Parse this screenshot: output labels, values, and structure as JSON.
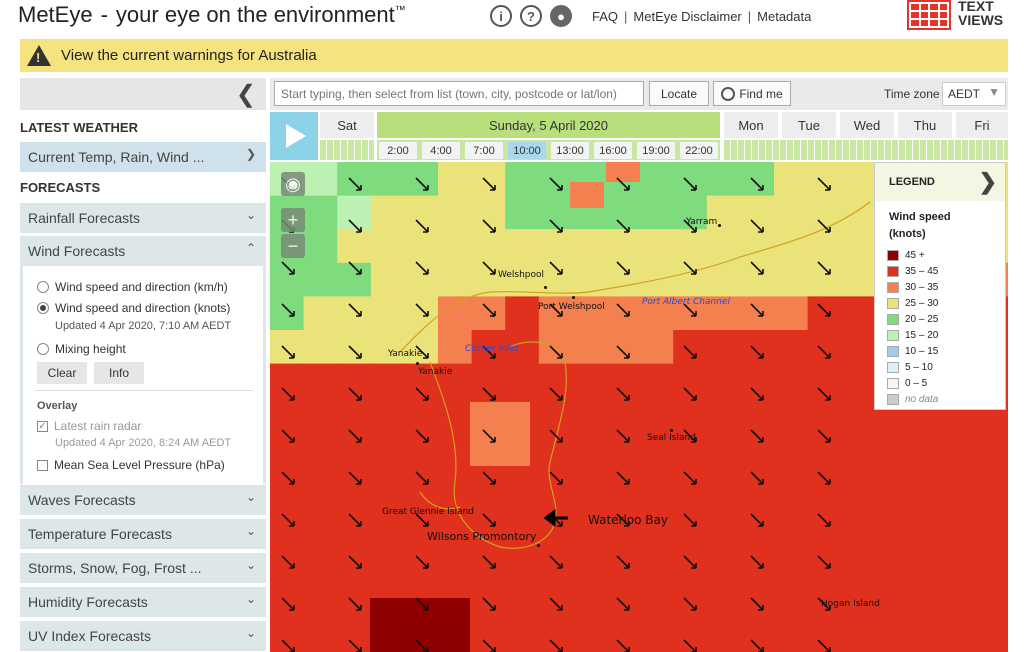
{
  "header": {
    "brand": "MetEye",
    "separator": "-",
    "tagline": "your eye on the environment",
    "trademark": "™",
    "icons": [
      "info-icon",
      "help-icon",
      "feedback-icon"
    ],
    "links": [
      "FAQ",
      "MetEye Disclaimer",
      "Metadata"
    ],
    "link_separator": "|",
    "text_views_line1": "TEXT",
    "text_views_line2": "VIEWS"
  },
  "warning": {
    "text": "View the current warnings for Australia"
  },
  "search": {
    "placeholder": "Start typing, then select from list (town, city, postcode or lat/lon)",
    "locate": "Locate",
    "find_me": "Find me",
    "timezone_label": "Time zone",
    "timezone_value": "AEDT"
  },
  "sidebar": {
    "latest_heading": "LATEST WEATHER",
    "current": "Current Temp, Rain, Wind ...",
    "forecasts_heading": "FORECASTS",
    "rainfall": "Rainfall Forecasts",
    "wind": "Wind Forecasts",
    "wind_options": {
      "kmh": "Wind speed and direction (km/h)",
      "knots": "Wind speed and direction (knots)",
      "knots_updated": "Updated 4 Apr 2020, 7:10 AM AEDT",
      "mixing": "Mixing height",
      "selected": "knots"
    },
    "clear": "Clear",
    "info": "Info",
    "overlay_heading": "Overlay",
    "radar": "Latest rain radar",
    "radar_updated": "Updated 4 Apr 2020, 8:24 AM AEDT",
    "mslp": "Mean Sea Level Pressure (hPa)",
    "waves": "Waves Forecasts",
    "temperature": "Temperature Forecasts",
    "storms": "Storms, Snow, Fog, Frost ...",
    "humidity": "Humidity Forecasts",
    "uv": "UV Index Forecasts"
  },
  "timeline": {
    "days": [
      "Sat",
      "Sunday, 5 April 2020",
      "Mon",
      "Tue",
      "Wed",
      "Thu",
      "Fri"
    ],
    "active_day": "Sunday, 5 April 2020",
    "hours": [
      "2:00",
      "4:00",
      "7:00",
      "10:00",
      "13:00",
      "16:00",
      "19:00",
      "22:00"
    ],
    "selected_hour": "10:00"
  },
  "map": {
    "places": [
      "Yarram",
      "Welshpool",
      "Port Welshpool",
      "Port Albert Channel",
      "Yanakie",
      "Yanakie",
      "Corner Inlet",
      "Seal Island",
      "Great Glennie Island",
      "Wilsons Promontory",
      "Waterloo Bay",
      "Hogan Island"
    ],
    "colors": {
      "c45": "#8e0000",
      "c35": "#e0301e",
      "c30": "#f5804f",
      "c25": "#e9e37a",
      "c20": "#7edb7e",
      "c15": "#bdf1b4",
      "c10": "#9ccdf1",
      "c5": "#ddf0fb",
      "c0": "#f6f6f6",
      "nodata": "#cccccc"
    }
  },
  "legend": {
    "heading": "LEGEND",
    "title": "Wind speed (knots)",
    "items": [
      {
        "label": "45 +",
        "color": "#8e0000"
      },
      {
        "label": "35 – 45",
        "color": "#e0301e"
      },
      {
        "label": "30 – 35",
        "color": "#f5804f"
      },
      {
        "label": "25 – 30",
        "color": "#e9e37a"
      },
      {
        "label": "20 – 25",
        "color": "#7edb7e"
      },
      {
        "label": "15 – 20",
        "color": "#bdf1b4"
      },
      {
        "label": "10 – 15",
        "color": "#9ccdf1"
      },
      {
        "label": "5 – 10",
        "color": "#ddf0fb"
      },
      {
        "label": "0 – 5",
        "color": "#f6f6f6"
      },
      {
        "label": "no data",
        "color": "#cccccc"
      }
    ]
  }
}
